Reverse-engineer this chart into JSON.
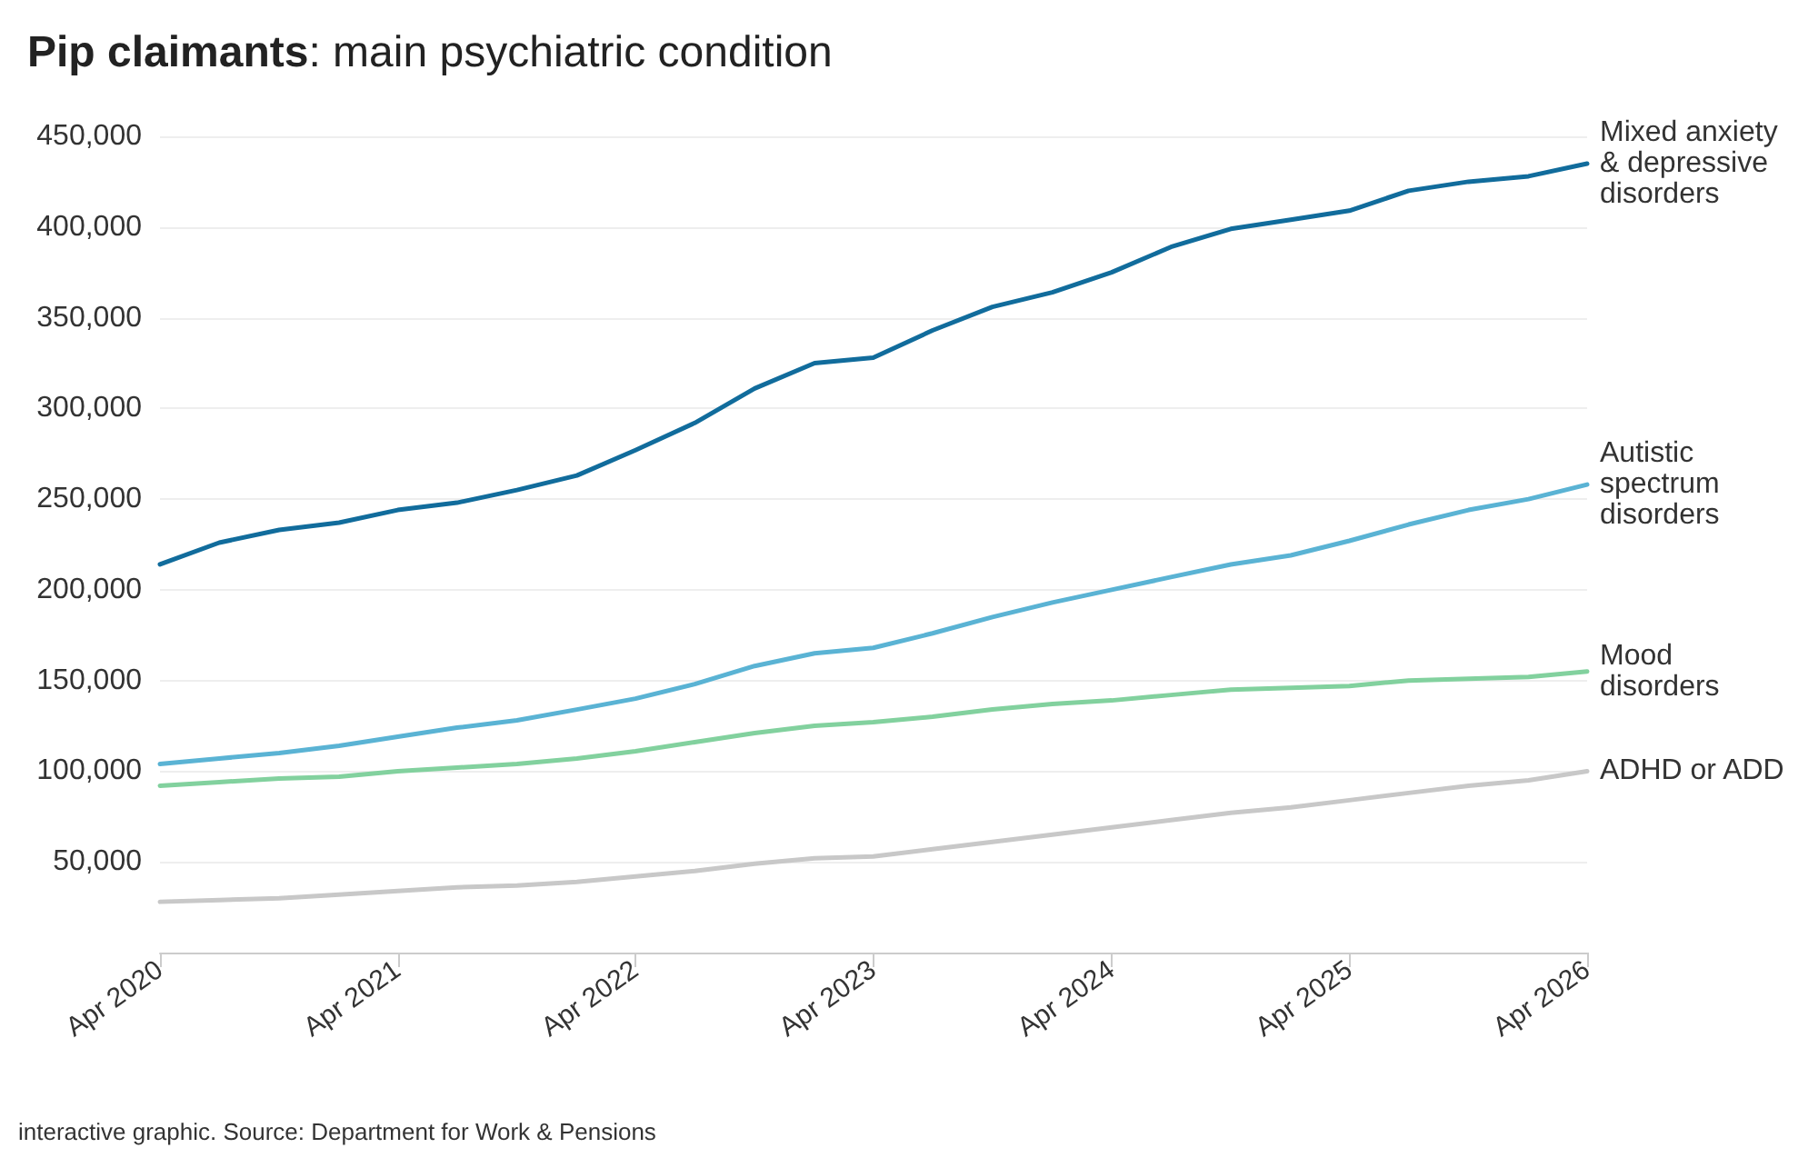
{
  "chart_data": {
    "type": "line",
    "title": "Pip claimants: main psychiatric condition",
    "x": [
      "2020-04",
      "2020-07",
      "2020-10",
      "2021-01",
      "2021-04",
      "2021-07",
      "2021-10",
      "2022-01",
      "2022-04",
      "2022-07",
      "2022-10",
      "2023-01",
      "2023-04",
      "2023-07",
      "2023-10",
      "2024-01",
      "2024-04",
      "2024-07",
      "2024-10",
      "2025-01",
      "2025-04",
      "2025-07",
      "2025-10",
      "2026-01",
      "2026-04"
    ],
    "series": [
      {
        "name": "Mixed anxiety & depressive disorders",
        "color": "#116c9c",
        "values": [
          214000,
          226000,
          233000,
          237000,
          244000,
          248000,
          255000,
          263000,
          277000,
          292000,
          311000,
          325000,
          328000,
          343000,
          356000,
          364000,
          375000,
          389000,
          399000,
          404000,
          409000,
          420000,
          425000,
          428000,
          435000
        ]
      },
      {
        "name": "Autistic spectrum disorders",
        "color": "#5ab3d4",
        "values": [
          104000,
          107000,
          110000,
          114000,
          119000,
          124000,
          128000,
          134000,
          140000,
          148000,
          158000,
          165000,
          168000,
          176000,
          185000,
          193000,
          200000,
          207000,
          214000,
          219000,
          227000,
          236000,
          244000,
          250000,
          258000
        ]
      },
      {
        "name": "Mood disorders",
        "color": "#82d19e",
        "values": [
          92000,
          94000,
          96000,
          97000,
          100000,
          102000,
          104000,
          107000,
          111000,
          116000,
          121000,
          125000,
          127000,
          130000,
          134000,
          137000,
          139000,
          142000,
          145000,
          146000,
          147000,
          150000,
          151000,
          152000,
          155000
        ]
      },
      {
        "name": "ADHD or ADD",
        "color": "#c8c8c8",
        "values": [
          28000,
          29000,
          30000,
          32000,
          34000,
          36000,
          37000,
          39000,
          42000,
          45000,
          49000,
          52000,
          53000,
          57000,
          61000,
          65000,
          69000,
          73000,
          77000,
          80000,
          84000,
          88000,
          92000,
          95000,
          100000
        ]
      }
    ],
    "xlim": [
      "2020-04",
      "2026-04"
    ],
    "xticks": [
      {
        "value": "2020-04",
        "label": "Apr 2020"
      },
      {
        "value": "2021-04",
        "label": "Apr 2021"
      },
      {
        "value": "2022-04",
        "label": "Apr 2022"
      },
      {
        "value": "2023-04",
        "label": "Apr 2023"
      },
      {
        "value": "2024-04",
        "label": "Apr 2024"
      },
      {
        "value": "2025-04",
        "label": "Apr 2025"
      },
      {
        "value": "2026-04",
        "label": "Apr 2026"
      }
    ],
    "ylim": [
      0,
      450000
    ],
    "yticks": [
      {
        "value": 50000,
        "label": "50,000"
      },
      {
        "value": 100000,
        "label": "100,000"
      },
      {
        "value": 150000,
        "label": "150,000"
      },
      {
        "value": 200000,
        "label": "200,000"
      },
      {
        "value": 250000,
        "label": "250,000"
      },
      {
        "value": 300000,
        "label": "300,000"
      },
      {
        "value": 350000,
        "label": "350,000"
      },
      {
        "value": 400000,
        "label": "400,000"
      },
      {
        "value": 450000,
        "label": "450,000"
      }
    ],
    "grid": "y",
    "marker": "none",
    "line_style": "solid",
    "legend": false,
    "annotations": [
      "interactive graphic. Source: Department for Work & Pensions"
    ]
  }
}
